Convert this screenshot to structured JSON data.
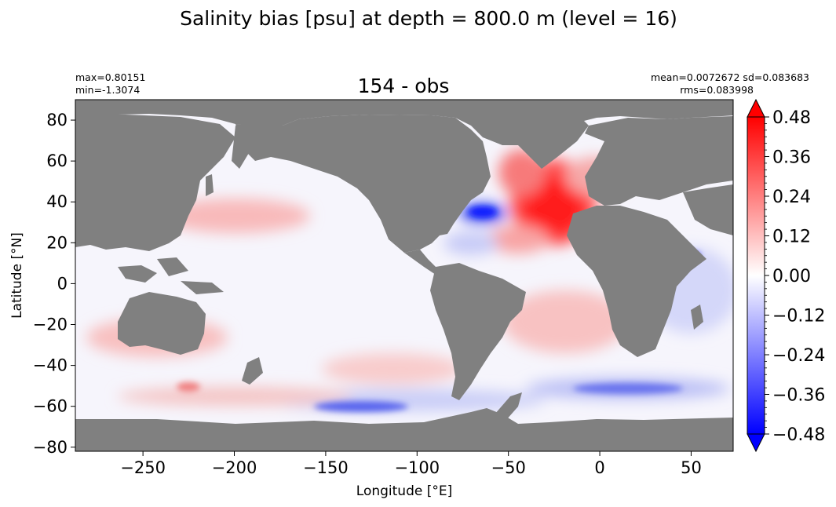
{
  "chart_data": {
    "type": "heatmap",
    "suptitle": "Salinity bias [psu] at depth = 800.0 m (level = 16)",
    "title": "154 - obs",
    "stats_left": [
      "max=0.80151",
      "min=-1.3074"
    ],
    "stats_right": [
      "mean=0.0072672 sd=0.083683",
      "rms=0.083998"
    ],
    "xlabel": "Longitude [°E]",
    "ylabel": "Latitude [°N]",
    "xlim": [
      -287,
      73
    ],
    "ylim": [
      -82,
      90
    ],
    "xticks": [
      -250,
      -200,
      -150,
      -100,
      -50,
      0,
      50
    ],
    "xtick_labels": [
      "−250",
      "−200",
      "−150",
      "−100",
      "−50",
      "0",
      "50"
    ],
    "yticks": [
      80,
      60,
      40,
      20,
      0,
      -20,
      -40,
      -60,
      -80
    ],
    "ytick_labels": [
      "80",
      "60",
      "40",
      "20",
      "0",
      "−20",
      "−40",
      "−60",
      "−80"
    ],
    "colorbar": {
      "range": [
        -0.48,
        0.48
      ],
      "ticks": [
        0.48,
        0.36,
        0.24,
        0.12,
        0.0,
        -0.12,
        -0.24,
        -0.36,
        -0.48
      ],
      "tick_labels": [
        "0.48",
        "0.36",
        "0.24",
        "0.12",
        "0.00",
        "−0.12",
        "−0.24",
        "−0.36",
        "−0.48"
      ],
      "extend": "both",
      "colormap": "bwr",
      "low_color": "#0000ff",
      "mid_color": "#ffffff",
      "high_color": "#ff0000"
    },
    "land_color": "#808080"
  }
}
